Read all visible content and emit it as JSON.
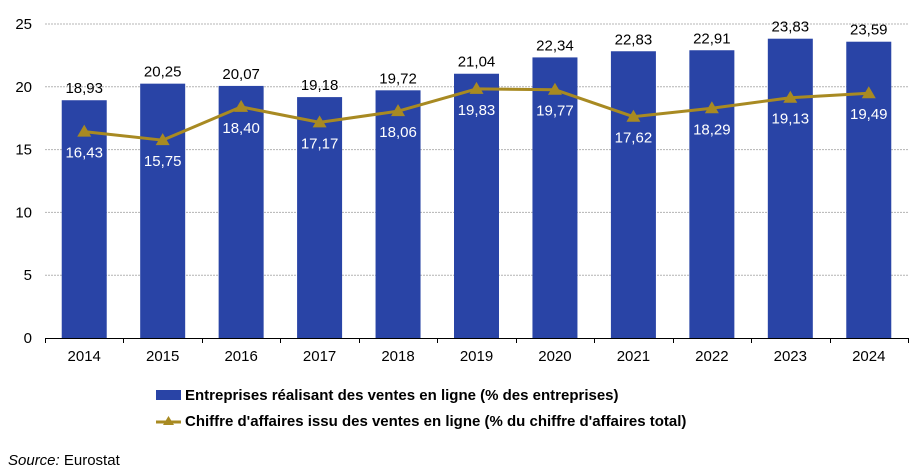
{
  "chart_data": {
    "type": "bar",
    "title": "",
    "xlabel": "",
    "ylabel": "",
    "categories": [
      "2014",
      "2015",
      "2016",
      "2017",
      "2018",
      "2019",
      "2020",
      "2021",
      "2022",
      "2023",
      "2024"
    ],
    "ylim": [
      0,
      25
    ],
    "yticks": [
      0,
      5,
      10,
      15,
      20,
      25
    ],
    "ytick_labels": [
      "0",
      "5",
      "10",
      "15",
      "20",
      "25"
    ],
    "grid": true,
    "legend_position": "bottom",
    "series": [
      {
        "name": "Entreprises réalisant des ventes en ligne (% des entreprises)",
        "type": "bar",
        "color": "#2944A6",
        "values": [
          18.93,
          20.25,
          20.07,
          19.18,
          19.72,
          21.04,
          22.34,
          22.83,
          22.91,
          23.83,
          23.59
        ],
        "labels": [
          "18,93",
          "20,25",
          "20,07",
          "19,18",
          "19,72",
          "21,04",
          "22,34",
          "22,83",
          "22,91",
          "23,83",
          "23,59"
        ]
      },
      {
        "name": "Chiffre d'affaires issu des ventes en ligne (% du chiffre d'affaires total)",
        "type": "line",
        "marker": "triangle",
        "color": "#A88A22",
        "values": [
          16.43,
          15.75,
          18.4,
          17.17,
          18.06,
          19.83,
          19.77,
          17.62,
          18.29,
          19.13,
          19.49
        ],
        "labels": [
          "16,43",
          "15,75",
          "18,40",
          "17,17",
          "18,06",
          "19,83",
          "19,77",
          "17,62",
          "18,29",
          "19,13",
          "19,49"
        ]
      }
    ]
  },
  "legend": {
    "bar_label": "Entreprises réalisant des ventes en ligne (% des entreprises)",
    "line_label": "Chiffre d'affaires issu des ventes en ligne (% du chiffre d'affaires total)"
  },
  "source": {
    "label": "Source:",
    "value": " Eurostat"
  }
}
